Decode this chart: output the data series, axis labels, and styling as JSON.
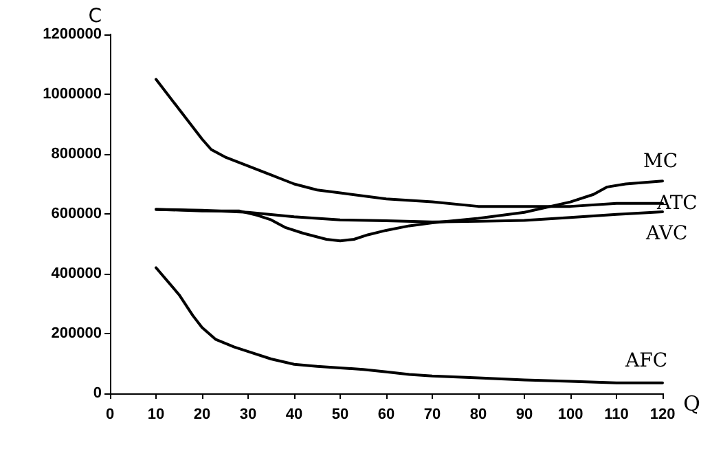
{
  "chart_data": {
    "type": "line",
    "xlabel": "Q",
    "ylabel": "C",
    "xlim": [
      0,
      120
    ],
    "xticks": [
      0,
      10,
      20,
      30,
      40,
      50,
      60,
      70,
      80,
      90,
      100,
      110,
      120
    ],
    "ylim": [
      0,
      1200000
    ],
    "yticks": [
      0,
      200000,
      400000,
      600000,
      800000,
      1000000,
      1200000
    ],
    "grid": false,
    "legend": false,
    "marker": "none",
    "line_style": "solid",
    "series": [
      {
        "name": "MC",
        "color": "#000000",
        "x": [
          10,
          20,
          28,
          32,
          35,
          38,
          42,
          47,
          50,
          53,
          56,
          60,
          65,
          70,
          80,
          90,
          100,
          105,
          108,
          112,
          120
        ],
        "values": [
          615000,
          610000,
          610000,
          595000,
          580000,
          555000,
          535000,
          515000,
          510000,
          515000,
          530000,
          545000,
          560000,
          570000,
          585000,
          605000,
          640000,
          665000,
          690000,
          700000,
          710000
        ]
      },
      {
        "name": "ATC",
        "color": "#000000",
        "x": [
          10,
          15,
          20,
          22,
          25,
          30,
          35,
          40,
          45,
          50,
          60,
          70,
          80,
          90,
          100,
          110,
          120
        ],
        "values": [
          1050000,
          950000,
          850000,
          815000,
          790000,
          760000,
          730000,
          700000,
          680000,
          670000,
          650000,
          640000,
          625000,
          625000,
          625000,
          635000,
          635000
        ]
      },
      {
        "name": "AVC",
        "color": "#000000",
        "x": [
          10,
          20,
          30,
          40,
          50,
          60,
          70,
          80,
          90,
          100,
          110,
          120
        ],
        "values": [
          615000,
          612000,
          605000,
          590000,
          580000,
          577000,
          573000,
          575000,
          578000,
          588000,
          598000,
          607000
        ]
      },
      {
        "name": "AFC",
        "color": "#000000",
        "x": [
          10,
          15,
          18,
          20,
          23,
          27,
          30,
          35,
          40,
          45,
          50,
          55,
          60,
          65,
          70,
          80,
          90,
          100,
          110,
          120
        ],
        "values": [
          420000,
          330000,
          260000,
          220000,
          180000,
          155000,
          140000,
          115000,
          97000,
          90000,
          85000,
          80000,
          72000,
          63000,
          58000,
          52000,
          45000,
          40000,
          35000,
          35000
        ]
      }
    ]
  }
}
